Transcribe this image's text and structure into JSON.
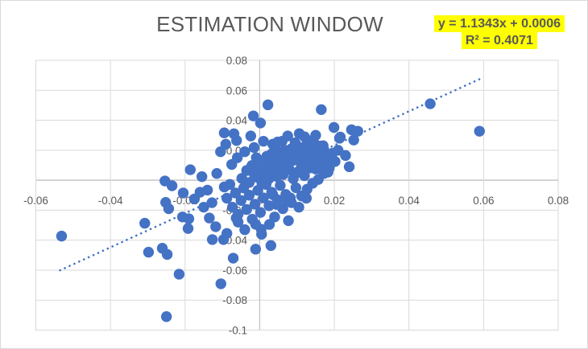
{
  "title": "ESTIMATION WINDOW",
  "trendline_label": {
    "equation": "y = 1.1343x + 0.0006",
    "r_squared": "R² = 0.4071",
    "highlight_color": "#FFFF00"
  },
  "colors": {
    "marker": "#4472C4",
    "trendline": "#4472C4",
    "gridline": "#D9D9D9",
    "axis_line": "#BFBFBF",
    "tick_text": "#595959",
    "title_text": "#595959",
    "chart_border": "#D9D9D9",
    "background": "#FFFFFF"
  },
  "chart_data": {
    "type": "scatter",
    "title": "ESTIMATION WINDOW",
    "xlabel": "",
    "ylabel": "",
    "xlim": [
      -0.06,
      0.08
    ],
    "ylim": [
      -0.1,
      0.08
    ],
    "grid": true,
    "x_ticks": [
      -0.06,
      -0.04,
      -0.02,
      0,
      0.02,
      0.04,
      0.06,
      0.08
    ],
    "x_tick_labels": [
      "-0.06",
      "-0.04",
      "-0.02",
      "0",
      "0.02",
      "0.04",
      "0.06",
      "0.08"
    ],
    "y_ticks": [
      0.08,
      0.06,
      0.04,
      0.02,
      0,
      -0.02,
      -0.04,
      -0.06,
      -0.08,
      -0.1
    ],
    "y_tick_labels": [
      "0.08",
      "0.06",
      "0.04",
      "0.02",
      "0",
      "-0.02",
      "-0.04",
      "-0.06",
      "-0.08",
      "-0.1"
    ],
    "trendline": {
      "slope": 1.1343,
      "intercept": 0.0006,
      "x_start": -0.0535,
      "x_end": 0.0593,
      "style": "dotted",
      "r_squared": 0.4071
    },
    "points": [
      [
        -0.0531,
        -0.0373
      ],
      [
        -0.025,
        -0.091
      ],
      [
        -0.0104,
        -0.0691
      ],
      [
        -0.0216,
        -0.0627
      ],
      [
        0.0457,
        0.051
      ],
      [
        0.0589,
        0.0327
      ],
      [
        0.0022,
        0.0503
      ],
      [
        -0.0017,
        0.0429
      ],
      [
        0.0002,
        0.0382
      ],
      [
        0.0165,
        0.0471
      ],
      [
        0.0199,
        0.0352
      ],
      [
        0.0246,
        0.0337
      ],
      [
        0.0263,
        0.0327
      ],
      [
        -0.0069,
        0.031
      ],
      [
        -0.0091,
        0.024
      ],
      [
        -0.0095,
        0.0316
      ],
      [
        -0.0254,
        -0.0005
      ],
      [
        -0.0235,
        -0.0037
      ],
      [
        -0.0244,
        -0.019
      ],
      [
        -0.0252,
        -0.0148
      ],
      [
        -0.0207,
        -0.0245
      ],
      [
        -0.019,
        -0.0257
      ],
      [
        -0.0192,
        -0.0322
      ],
      [
        -0.0308,
        -0.0287
      ],
      [
        -0.0298,
        -0.048
      ],
      [
        -0.0261,
        -0.0454
      ],
      [
        -0.0248,
        -0.0495
      ],
      [
        -0.0127,
        -0.0396
      ],
      [
        -0.0097,
        -0.0396
      ],
      [
        -0.0071,
        -0.052
      ],
      [
        -0.0011,
        -0.046
      ],
      [
        0.003,
        -0.0436
      ],
      [
        -0.0186,
        0.007
      ],
      [
        -0.0205,
        -0.0085
      ],
      [
        0.0216,
        0.0288
      ],
      [
        0.0214,
        0.028
      ],
      [
        0.0252,
        0.0268
      ],
      [
        0.017,
        0.023
      ],
      [
        0.0172,
        0.0204
      ],
      [
        0.0177,
        0.0107
      ],
      [
        0.0186,
        0.008
      ],
      [
        0.0106,
        0.0311
      ],
      [
        0.0127,
        0.0268
      ],
      [
        0.012,
        0.029
      ],
      [
        0.015,
        0.03
      ],
      [
        0.0138,
        0.0087
      ],
      [
        0.0164,
        0.0096
      ],
      [
        0.0183,
        0.0054
      ],
      [
        -0.0088,
        -0.0355
      ],
      [
        -0.0058,
        -0.0279
      ],
      [
        -0.0063,
        -0.0252
      ],
      [
        -0.0011,
        -0.0294
      ],
      [
        0.0026,
        -0.0295
      ],
      [
        0.0004,
        -0.0327
      ],
      [
        0.0045,
        -0.0161
      ],
      [
        0.0073,
        -0.0139
      ],
      [
        0.0082,
        -0.0118
      ],
      [
        0.0035,
        -0.0096
      ],
      [
        -0.016,
        -0.008
      ],
      [
        -0.0175,
        -0.0125
      ],
      [
        -0.015,
        -0.018
      ],
      [
        -0.0135,
        -0.0252
      ],
      [
        -0.0118,
        -0.031
      ],
      [
        -0.014,
        -0.0066
      ],
      [
        -0.0128,
        -0.015
      ],
      [
        -0.0155,
        0.0024
      ],
      [
        -0.0115,
        0.0045
      ],
      [
        -0.0105,
        0.019
      ],
      [
        0.0095,
        0.025
      ],
      [
        0.006,
        0.026
      ],
      [
        0.0035,
        0.024
      ],
      [
        0.001,
        0.026
      ],
      [
        -0.0015,
        0.0218
      ],
      [
        -0.004,
        0.019
      ],
      [
        -0.006,
        0.015
      ],
      [
        -0.0075,
        0.0105
      ],
      [
        0.023,
        0.0165
      ],
      [
        0.024,
        0.009
      ],
      [
        0.0005,
        -0.036
      ],
      [
        -0.004,
        -0.033
      ],
      [
        0.0105,
        -0.018
      ],
      [
        0.0125,
        -0.012
      ],
      [
        -0.0062,
        0.0265
      ],
      [
        -0.0024,
        0.0295
      ],
      [
        0.0075,
        0.0295
      ],
      [
        0.0048,
        0.0255
      ],
      [
        -0.0048,
        0.0012
      ],
      [
        -0.0035,
        0.0065
      ],
      [
        -0.0028,
        -0.0015
      ],
      [
        -0.0021,
        0.0098
      ],
      [
        -0.0015,
        0.0042
      ],
      [
        -0.0009,
        0.015
      ],
      [
        -0.0004,
        0.0018
      ],
      [
        0.0001,
        0.0085
      ],
      [
        0.0006,
        -0.0022
      ],
      [
        0.0011,
        0.0128
      ],
      [
        0.0015,
        0.0052
      ],
      [
        0.0019,
        0.016
      ],
      [
        0.0024,
        0.0008
      ],
      [
        0.0028,
        0.0105
      ],
      [
        0.0033,
        0.0178
      ],
      [
        0.0037,
        0.0061
      ],
      [
        0.0041,
        0.0135
      ],
      [
        0.0046,
        0.0025
      ],
      [
        0.005,
        0.0188
      ],
      [
        0.0054,
        0.0092
      ],
      [
        0.0058,
        0.0148
      ],
      [
        0.0063,
        0.0038
      ],
      [
        0.0067,
        0.02
      ],
      [
        0.0071,
        0.0115
      ],
      [
        0.0076,
        0.017
      ],
      [
        0.008,
        0.007
      ],
      [
        0.0085,
        0.021
      ],
      [
        0.0089,
        0.0132
      ],
      [
        0.0093,
        0.0185
      ],
      [
        0.0098,
        0.0048
      ],
      [
        0.0103,
        0.0222
      ],
      [
        0.0107,
        0.0155
      ],
      [
        0.0112,
        0.0095
      ],
      [
        0.0116,
        0.0205
      ],
      [
        0.0121,
        0.0118
      ],
      [
        0.0125,
        0.0235
      ],
      [
        0.013,
        0.0165
      ],
      [
        0.0134,
        0.0082
      ],
      [
        0.0139,
        0.0215
      ],
      [
        0.0143,
        0.014
      ],
      [
        0.0148,
        0.024
      ],
      [
        0.0152,
        0.0192
      ],
      [
        0.0157,
        0.0122
      ],
      [
        0.0161,
        0.0228
      ],
      [
        0.0166,
        0.0175
      ],
      [
        -0.0095,
        -0.0045
      ],
      [
        -0.0088,
        -0.012
      ],
      [
        -0.008,
        -0.0028
      ],
      [
        -0.0073,
        -0.018
      ],
      [
        -0.0065,
        -0.0085
      ],
      [
        -0.0058,
        -0.0228
      ],
      [
        -0.005,
        -0.0135
      ],
      [
        -0.0043,
        -0.0052
      ],
      [
        -0.0035,
        -0.0195
      ],
      [
        -0.0028,
        -0.01
      ],
      [
        -0.002,
        -0.026
      ],
      [
        -0.0013,
        -0.016
      ],
      [
        -0.0005,
        -0.0068
      ],
      [
        0.0002,
        -0.0215
      ],
      [
        0.001,
        -0.0118
      ],
      [
        0.0017,
        -0.0028
      ],
      [
        0.0025,
        -0.017
      ],
      [
        0.0032,
        -0.008
      ],
      [
        0.004,
        -0.0245
      ],
      [
        0.0047,
        -0.013
      ],
      [
        0.0055,
        -0.0035
      ],
      [
        0.0062,
        -0.019
      ],
      [
        0.007,
        -0.0095
      ],
      [
        0.0077,
        -0.027
      ],
      [
        0.0085,
        -0.015
      ],
      [
        0.009,
        0.001
      ],
      [
        0.0097,
        -0.005
      ],
      [
        0.0105,
        0.006
      ],
      [
        0.0112,
        -0.0105
      ],
      [
        0.012,
        0.003
      ],
      [
        0.0127,
        -0.006
      ],
      [
        0.0135,
        0.011
      ],
      [
        0.0142,
        -0.002
      ],
      [
        0.015,
        0.0075
      ],
      [
        0.0157,
        0.0005
      ],
      [
        0.0165,
        0.013
      ],
      [
        0.0172,
        0.0045
      ],
      [
        0.018,
        0.0155
      ],
      [
        0.0187,
        0.009
      ],
      [
        0.0195,
        0.018
      ],
      [
        0.0202,
        0.0125
      ],
      [
        0.021,
        0.02
      ]
    ]
  }
}
